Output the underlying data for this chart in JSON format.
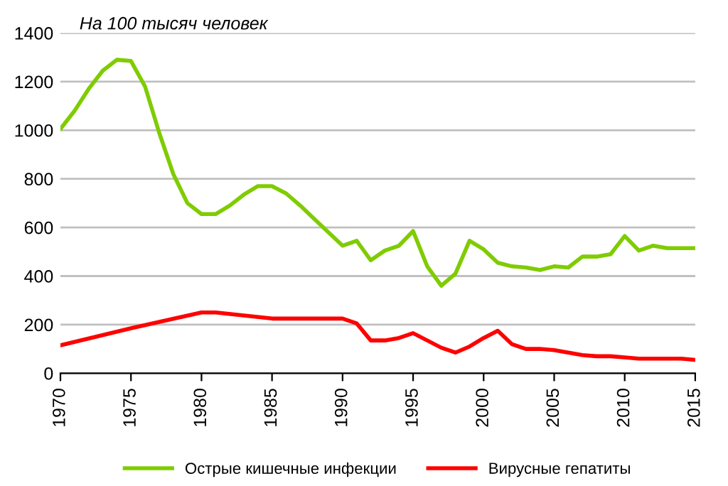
{
  "chart_data": {
    "type": "line",
    "title": "На 100 тысяч человек",
    "xlim": [
      1970,
      2015
    ],
    "xticks": [
      1970,
      1975,
      1980,
      1985,
      1990,
      1995,
      2000,
      2005,
      2010,
      2015
    ],
    "ylim": [
      0,
      1400
    ],
    "yticks": [
      0,
      200,
      400,
      600,
      800,
      1000,
      1200,
      1400
    ],
    "grid": "y",
    "legend": "bottom",
    "series": [
      {
        "name": "Острые кишечные инфекции",
        "color": "#7fcc00",
        "x": [
          1970,
          1971,
          1972,
          1973,
          1974,
          1975,
          1976,
          1977,
          1978,
          1979,
          1980,
          1981,
          1982,
          1983,
          1984,
          1985,
          1986,
          1987,
          1988,
          1989,
          1990,
          1991,
          1992,
          1993,
          1994,
          1995,
          1996,
          1997,
          1998,
          1999,
          2000,
          2001,
          2002,
          2003,
          2004,
          2005,
          2006,
          2007,
          2008,
          2009,
          2010,
          2011,
          2012,
          2013,
          2014,
          2015
        ],
        "values": [
          1005,
          1080,
          1170,
          1245,
          1290,
          1285,
          1180,
          990,
          820,
          700,
          655,
          655,
          690,
          735,
          770,
          770,
          740,
          690,
          635,
          580,
          525,
          545,
          465,
          505,
          525,
          585,
          440,
          360,
          410,
          545,
          510,
          455,
          440,
          435,
          425,
          440,
          435,
          480,
          480,
          490,
          565,
          505,
          525,
          515,
          515,
          515
        ]
      },
      {
        "name": "Вирусные гепатиты",
        "color": "#ff0000",
        "x": [
          1970,
          1975,
          1980,
          1981,
          1985,
          1990,
          1991,
          1992,
          1993,
          1994,
          1995,
          1996,
          1997,
          1998,
          1999,
          2000,
          2001,
          2002,
          2003,
          2004,
          2005,
          2006,
          2007,
          2008,
          2009,
          2010,
          2011,
          2012,
          2013,
          2014,
          2015
        ],
        "values": [
          115,
          185,
          250,
          250,
          225,
          225,
          205,
          135,
          135,
          145,
          165,
          135,
          105,
          85,
          110,
          145,
          175,
          120,
          100,
          100,
          95,
          85,
          75,
          70,
          70,
          65,
          60,
          60,
          60,
          60,
          55
        ]
      }
    ]
  }
}
